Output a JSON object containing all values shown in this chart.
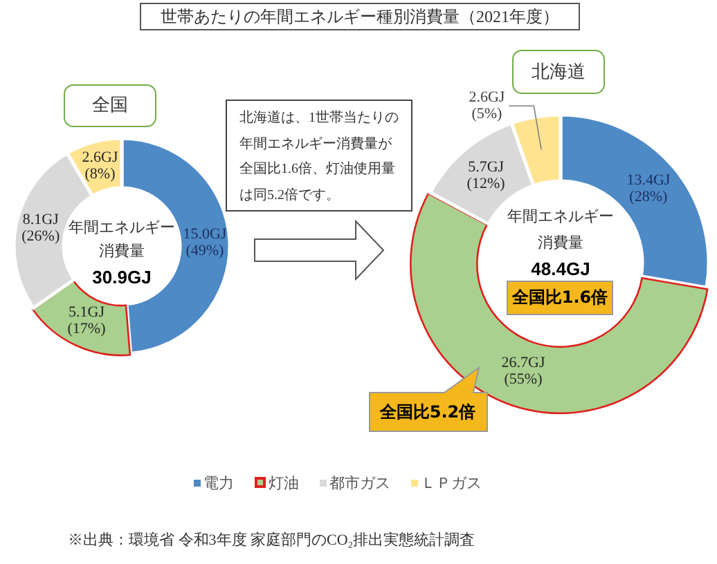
{
  "chart_data": [
    {
      "type": "donut",
      "title": "世帯あたりの年間エネルギー種別消費量（2021年度）",
      "subtitle": "全国",
      "categories": [
        "電力",
        "灯油",
        "都市ガス",
        "ＬＰガス"
      ],
      "values": [
        15.0,
        5.1,
        8.1,
        2.6
      ],
      "colors": [
        "#4e8ac6",
        "#a9d08e",
        "#d9d9d9",
        "#ffe38f"
      ],
      "value_labels": [
        "15.0GJ (49%)",
        "5.1GJ (17%)",
        "8.1GJ (26%)",
        "2.6GJ (8%)"
      ],
      "legend": "bottom",
      "annotations": [
        "年間エネルギー消費量",
        "30.9GJ",
        "※出典：環境省 令和3年度 家庭部門のCO₂排出実態統計調査"
      ]
    },
    {
      "type": "donut",
      "subtitle": "北海道",
      "categories": [
        null,
        null,
        null,
        null
      ],
      "values": [
        13.4,
        26.7,
        5.7,
        2.6
      ],
      "colors": [
        "#4e8ac6",
        "#a9d08e",
        "#d9d9d9",
        "#ffe38f"
      ],
      "value_labels": [
        "13.4GJ (28%)",
        "26.7GJ (55%)",
        "5.7GJ (12%)",
        "2.6GJ (5%)"
      ],
      "annotations": [
        "北海道は、1世帯当たりの年間エネルギー消費量が全国比1.6倍、灯油使用量は同5.2倍です。",
        "年間エネルギー消費量",
        "48.4GJ",
        "全国比1.6倍",
        "全国比5.2倍"
      ]
    }
  ]
}
